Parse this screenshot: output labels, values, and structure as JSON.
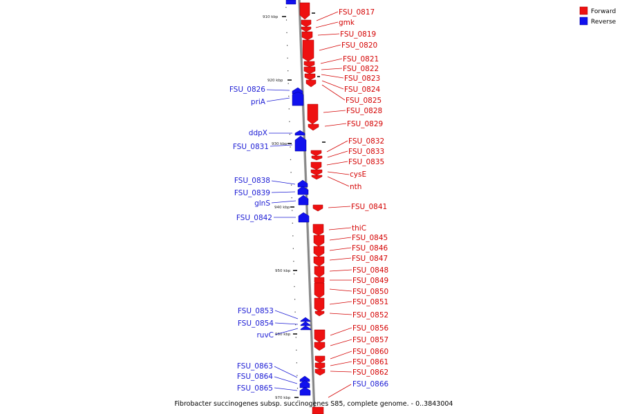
{
  "colors": {
    "forward": "#ee1111",
    "reverse": "#1111ee",
    "forward_text": "#d40000",
    "reverse_text": "#1a1ad4",
    "backbone": "#999999"
  },
  "legend": {
    "forward": "Forward",
    "reverse": "Reverse"
  },
  "caption": "Fibrobacter succinogenes subsp. succinogenes S85, complete genome. - 0..3843004",
  "ticks": [
    {
      "label": "910 kbp",
      "pos": 910
    },
    {
      "label": "920 kbp",
      "pos": 920
    },
    {
      "label": "930 kbp",
      "pos": 930
    },
    {
      "label": "940 kbp",
      "pos": 940
    },
    {
      "label": "950 kbp",
      "pos": 950
    },
    {
      "label": "960 kbp",
      "pos": 960
    },
    {
      "label": "970 kbp",
      "pos": 970
    }
  ],
  "forward_genes": [
    "FSU_0817",
    "gmk",
    "FSU_0819",
    "FSU_0820",
    "FSU_0821",
    "FSU_0822",
    "FSU_0823",
    "FSU_0824",
    "FSU_0825",
    "FSU_0828",
    "FSU_0829",
    "FSU_0832",
    "FSU_0833",
    "FSU_0835",
    "cysE",
    "nth",
    "FSU_0841",
    "thiC",
    "FSU_0845",
    "FSU_0846",
    "FSU_0847",
    "FSU_0848",
    "FSU_0849",
    "FSU_0850",
    "FSU_0851",
    "FSU_0852",
    "FSU_0856",
    "FSU_0857",
    "FSU_0860",
    "FSU_0861",
    "FSU_0862",
    "FSU_0866"
  ],
  "reverse_genes": [
    "FSU_0826",
    "priA",
    "ddpX",
    "FSU_0831",
    "FSU_0838",
    "FSU_0839",
    "glnS",
    "FSU_0842",
    "FSU_0853",
    "FSU_0854",
    "ruvC",
    "FSU_0863",
    "FSU_0864",
    "FSU_0865"
  ]
}
